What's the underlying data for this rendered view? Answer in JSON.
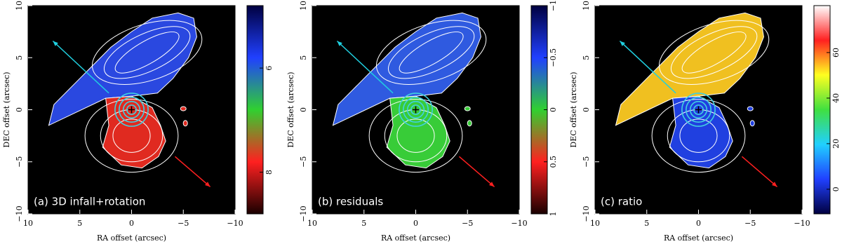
{
  "chart_data": [
    {
      "type": "image",
      "title": "(a) 3D infall+rotation",
      "xlabel": "RA offset (arcsec)",
      "ylabel": "DEC offset (arcsec)",
      "xlim": [
        10,
        -10
      ],
      "ylim": [
        -10,
        10
      ],
      "xticks": [
        10,
        5,
        0,
        {
          "value": -5,
          "label": "−5"
        },
        {
          "value": -10,
          "label": "−10"
        }
      ],
      "yticks": [
        {
          "value": -10,
          "label": "−10"
        },
        {
          "value": -5,
          "label": "−5"
        },
        0,
        5,
        10
      ],
      "clim": [
        8.8,
        4.8
      ],
      "cticks": [
        6,
        8
      ],
      "colormap": [
        "#1a0000",
        "#ff2020",
        "#30d030",
        "#2040ff",
        "#000040"
      ],
      "north_color": "#2a48e0",
      "south_color": "#e02a20"
    },
    {
      "type": "image",
      "title": "(b) residuals",
      "xlabel": "RA offset (arcsec)",
      "ylabel": "DEC offset (arcsec)",
      "xlim": [
        10,
        -10
      ],
      "ylim": [
        -10,
        10
      ],
      "xticks": [
        10,
        5,
        0,
        {
          "value": -5,
          "label": "−5"
        },
        {
          "value": -10,
          "label": "−10"
        }
      ],
      "yticks": [
        {
          "value": -10,
          "label": "−10"
        },
        {
          "value": -5,
          "label": "−5"
        },
        0,
        5,
        10
      ],
      "clim": [
        1,
        -1
      ],
      "cticks": [
        {
          "value": -1,
          "label": "−1"
        },
        {
          "value": -0.5,
          "label": "−0.5"
        },
        0,
        0.5,
        1
      ],
      "colormap": [
        "#1a0000",
        "#ff2020",
        "#30d030",
        "#2040ff",
        "#000040"
      ],
      "north_color": "#2f5ae0",
      "south_color": "#38cc38"
    },
    {
      "type": "image",
      "title": "(c) ratio",
      "xlabel": "RA offset (arcsec)",
      "ylabel": "DEC offset (arcsec)",
      "xlim": [
        10,
        -10
      ],
      "ylim": [
        -10,
        10
      ],
      "xticks": [
        10,
        5,
        0,
        {
          "value": -5,
          "label": "−5"
        },
        {
          "value": -10,
          "label": "−10"
        }
      ],
      "yticks": [
        {
          "value": -10,
          "label": "−10"
        },
        {
          "value": -5,
          "label": "−5"
        },
        0,
        5,
        10
      ],
      "clim": [
        -10.8,
        80.6
      ],
      "cticks": [
        0,
        20,
        40,
        60
      ],
      "colormap": [
        "#000040",
        "#2040ff",
        "#20d0ff",
        "#40e040",
        "#ffff20",
        "#ff2020",
        "#ffffff"
      ],
      "north_color": "#f0c020",
      "south_color": "#2040e0"
    }
  ]
}
